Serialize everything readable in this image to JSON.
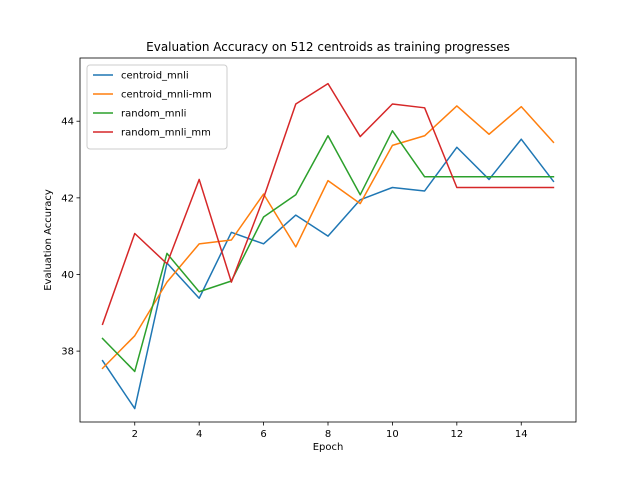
{
  "chart_data": {
    "type": "line",
    "title": "Evaluation Accuracy on 512 centroids as training progresses",
    "xlabel": "Epoch",
    "ylabel": "Evaluation Accuracy",
    "xlim": [
      0.3,
      15.7
    ],
    "ylim": [
      36.15,
      45.65
    ],
    "xticks": [
      2,
      4,
      6,
      8,
      10,
      12,
      14
    ],
    "yticks": [
      38,
      40,
      42,
      44
    ],
    "grid": false,
    "legend_position": "top-left",
    "x": [
      1,
      2,
      3,
      4,
      5,
      6,
      7,
      8,
      9,
      10,
      11,
      12,
      13,
      14,
      15
    ],
    "series": [
      {
        "name": "centroid_mnli",
        "color": "#1f77b4",
        "values": [
          37.75,
          36.5,
          40.3,
          39.38,
          41.1,
          40.8,
          41.55,
          41.0,
          41.95,
          42.27,
          42.18,
          43.32,
          42.48,
          43.53,
          42.43
        ]
      },
      {
        "name": "centroid_mnli-mm",
        "color": "#ff7f0e",
        "values": [
          37.55,
          38.4,
          39.8,
          40.8,
          40.9,
          42.1,
          40.72,
          42.45,
          41.85,
          43.37,
          43.62,
          44.4,
          43.66,
          44.38,
          43.45
        ]
      },
      {
        "name": "random_mnli",
        "color": "#2ca02c",
        "values": [
          38.33,
          37.47,
          40.55,
          39.55,
          39.83,
          41.5,
          42.08,
          43.62,
          42.08,
          43.75,
          42.55,
          42.55,
          42.55,
          42.55,
          42.55
        ]
      },
      {
        "name": "random_mnli_mm",
        "color": "#d62728",
        "values": [
          38.7,
          41.07,
          40.28,
          42.48,
          39.8,
          42.0,
          44.45,
          44.98,
          43.6,
          44.45,
          44.35,
          42.27,
          42.27,
          42.27,
          42.27
        ]
      }
    ]
  }
}
